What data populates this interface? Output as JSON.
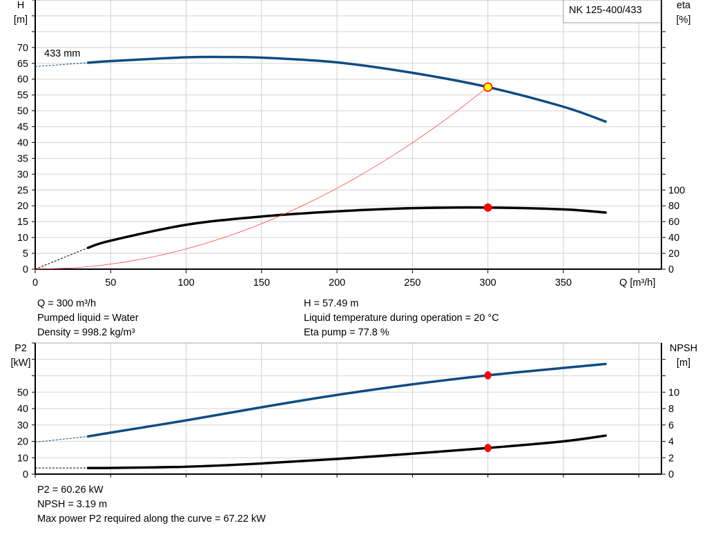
{
  "chart_data": [
    {
      "type": "line",
      "title": "NK 125-400/433",
      "xlabel": "Q [m³/h]",
      "ylabel": "H\n[m]",
      "y2label": "eta\n[%]",
      "xlim": [
        0,
        415
      ],
      "ylim": [
        0,
        85
      ],
      "y2lim": [
        0,
        340
      ],
      "xticks": [
        0,
        50,
        100,
        150,
        200,
        250,
        300,
        350
      ],
      "yticks": [
        0,
        5,
        10,
        15,
        20,
        25,
        30,
        35,
        40,
        45,
        50,
        55,
        60,
        65,
        70
      ],
      "y2ticks": [
        0,
        20,
        40,
        60,
        80,
        100
      ],
      "grid": true,
      "annotation": "433 mm",
      "series": [
        {
          "id": "H",
          "axis": "left",
          "color": "#0f4c81",
          "dashed_x": [
            0,
            35
          ],
          "dashed_y": [
            64,
            65.2
          ],
          "x": [
            35,
            50,
            100,
            125,
            150,
            200,
            250,
            300,
            350,
            378
          ],
          "y": [
            65.2,
            65.7,
            66.9,
            67,
            66.8,
            65.3,
            62,
            57.49,
            51.3,
            46.6
          ]
        },
        {
          "id": "eta",
          "axis": "right",
          "color": "#000000",
          "dashed_x": [
            0,
            35
          ],
          "dashed_y": [
            0,
            27
          ],
          "x": [
            35,
            50,
            100,
            150,
            200,
            250,
            300,
            350,
            378
          ],
          "y": [
            27,
            36,
            56,
            66.5,
            73,
            77,
            77.8,
            75.5,
            71.5
          ]
        },
        {
          "id": "system",
          "axis": "left",
          "color": "#ff4040",
          "x": [
            0,
            30,
            60,
            90,
            120,
            150,
            180,
            210,
            240,
            270,
            300
          ],
          "y": [
            0,
            0.57,
            2.3,
            5.17,
            9.2,
            14.37,
            20.7,
            28.17,
            36.79,
            46.57,
            57.49
          ]
        }
      ],
      "duty_point": {
        "Q": 300,
        "H": 57.49,
        "eta": 77.8
      }
    },
    {
      "type": "line",
      "ylabel": "P2\n[kW]",
      "y2label": "NPSH\n[m]",
      "xlim": [
        0,
        415
      ],
      "ylim": [
        0,
        80
      ],
      "y2lim": [
        0,
        16
      ],
      "yticks": [
        0,
        10,
        20,
        30,
        40,
        50
      ],
      "y2ticks": [
        0,
        2,
        4,
        6,
        8,
        10
      ],
      "grid": true,
      "series": [
        {
          "id": "P2",
          "axis": "left",
          "color": "#0f4c81",
          "dashed_x": [
            0,
            35
          ],
          "dashed_y": [
            19.5,
            23
          ],
          "x": [
            35,
            50,
            100,
            150,
            200,
            250,
            300,
            350,
            378
          ],
          "y": [
            23,
            25.3,
            32.8,
            40.8,
            48.3,
            54.8,
            60.26,
            64.8,
            67.22
          ]
        },
        {
          "id": "NPSH",
          "axis": "right",
          "color": "#000000",
          "dashed_x": [
            0,
            35
          ],
          "dashed_y": [
            0.75,
            0.75
          ],
          "x": [
            35,
            50,
            100,
            150,
            200,
            250,
            300,
            350,
            378
          ],
          "y": [
            0.75,
            0.76,
            0.9,
            1.3,
            1.85,
            2.5,
            3.19,
            4.0,
            4.7
          ]
        }
      ],
      "duty_point": {
        "Q": 300,
        "P2": 60.26,
        "NPSH": 3.19
      }
    }
  ],
  "info_top": {
    "q": "Q = 300 m³/h",
    "liquid": "Pumped liquid = Water",
    "density": "Density = 998.2 kg/m³",
    "h": "H = 57.49 m",
    "temp": "Liquid temperature during operation = 20 °C",
    "eta": "Eta pump = 77.8 %"
  },
  "info_bottom": {
    "p2": "P2 = 60.26 kW",
    "npsh": "NPSH = 3.19 m",
    "maxp2": "Max power P2 required along the curve = 67.22 kW"
  }
}
